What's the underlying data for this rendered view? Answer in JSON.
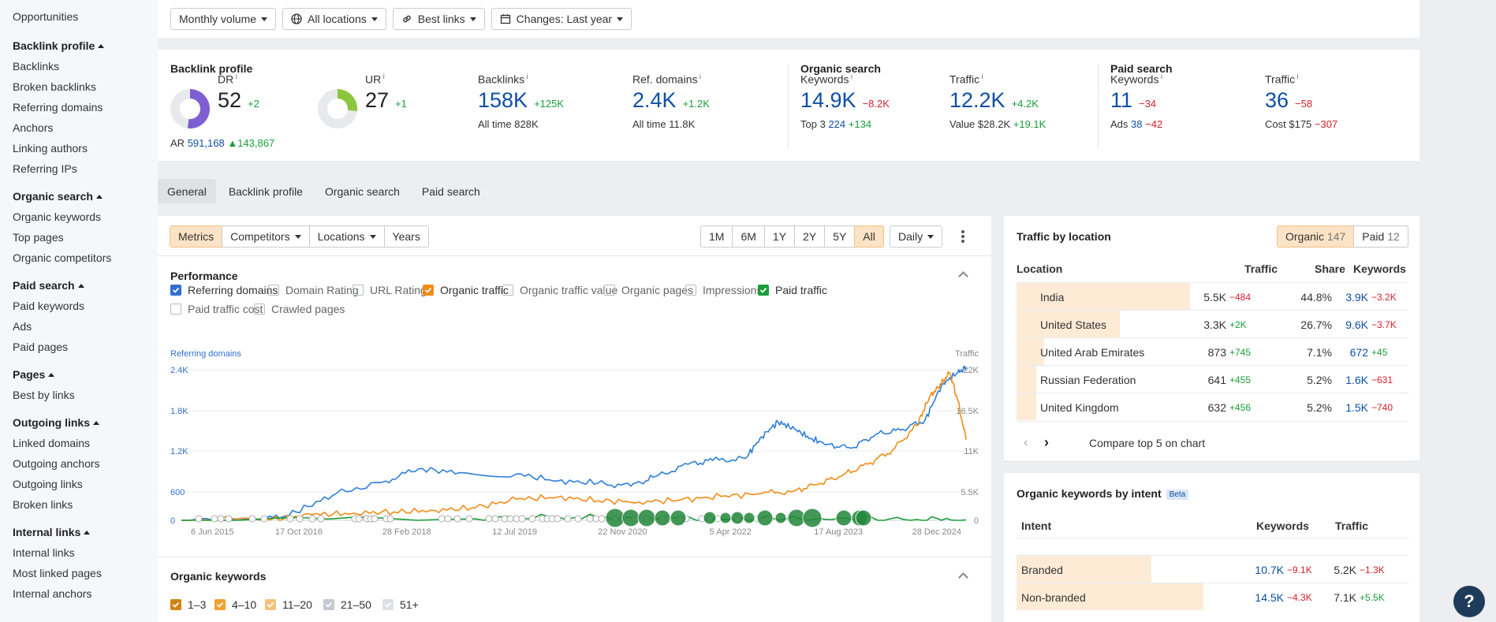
{
  "sidebar": {
    "top_item": "Opportunities",
    "groups": [
      {
        "title": "Backlink profile",
        "items": [
          "Backlinks",
          "Broken backlinks",
          "Referring domains",
          "Anchors",
          "Linking authors",
          "Referring IPs"
        ]
      },
      {
        "title": "Organic search",
        "items": [
          "Organic keywords",
          "Top pages",
          "Organic competitors"
        ]
      },
      {
        "title": "Paid search",
        "items": [
          "Paid keywords",
          "Ads",
          "Paid pages"
        ]
      },
      {
        "title": "Pages",
        "items": [
          "Best by links"
        ]
      },
      {
        "title": "Outgoing links",
        "items": [
          "Linked domains",
          "Outgoing anchors",
          "Outgoing links",
          "Broken links"
        ]
      },
      {
        "title": "Internal links",
        "items": [
          "Internal links",
          "Most linked pages",
          "Internal anchors"
        ]
      }
    ]
  },
  "filters": {
    "volume": "Monthly volume",
    "locations": "All locations",
    "links": "Best links",
    "changes": "Changes: Last year"
  },
  "metrics": {
    "backlink_profile": {
      "title": "Backlink profile",
      "dr": {
        "label": "DR",
        "value": "52",
        "delta": "+2",
        "fill": 0.52
      },
      "ar": {
        "label": "AR",
        "value": "591,168",
        "delta": "143,867"
      },
      "ur": {
        "label": "UR",
        "value": "27",
        "delta": "+1",
        "fill": 0.27
      },
      "backlinks": {
        "label": "Backlinks",
        "value": "158K",
        "delta": "+125K",
        "sub_label": "All time",
        "sub_value": "828K"
      },
      "ref_domains": {
        "label": "Ref. domains",
        "value": "2.4K",
        "delta": "+1.2K",
        "sub_label": "All time",
        "sub_value": "11.8K"
      }
    },
    "organic_search": {
      "title": "Organic search",
      "keywords": {
        "label": "Keywords",
        "value": "14.9K",
        "delta": "−8.2K",
        "sub_label": "Top 3",
        "sub_value": "224",
        "sub_delta": "+134"
      },
      "traffic": {
        "label": "Traffic",
        "value": "12.2K",
        "delta": "+4.2K",
        "sub_label": "Value",
        "sub_value": "$28.2K",
        "sub_delta": "+19.1K"
      }
    },
    "paid_search": {
      "title": "Paid search",
      "keywords": {
        "label": "Keywords",
        "value": "11",
        "delta": "−34",
        "sub_label": "Ads",
        "sub_value": "38",
        "sub_delta": "−42"
      },
      "traffic": {
        "label": "Traffic",
        "value": "36",
        "delta": "−58",
        "sub_label": "Cost",
        "sub_value": "$175",
        "sub_delta": "−307"
      }
    }
  },
  "tabs": [
    "General",
    "Backlink profile",
    "Organic search",
    "Paid search"
  ],
  "chart_toolbar": {
    "metrics": "Metrics",
    "competitors": "Competitors",
    "locations": "Locations",
    "years": "Years",
    "ranges": [
      "1M",
      "6M",
      "1Y",
      "2Y",
      "5Y",
      "All"
    ],
    "active_range": "All",
    "interval": "Daily"
  },
  "performance": {
    "title": "Performance",
    "checkboxes": [
      {
        "label": "Referring domains",
        "checked": true,
        "color": "#2f6fd1"
      },
      {
        "label": "Domain Rating",
        "checked": false
      },
      {
        "label": "URL Rating",
        "checked": false
      },
      {
        "label": "Organic traffic",
        "checked": true,
        "color": "#f08c15"
      },
      {
        "label": "Organic traffic value",
        "checked": false
      },
      {
        "label": "Organic pages",
        "checked": false
      },
      {
        "label": "Impressions",
        "checked": false
      },
      {
        "label": "Paid traffic",
        "checked": true,
        "color": "#1a9d3a"
      },
      {
        "label": "Paid traffic cost",
        "checked": false
      },
      {
        "label": "Crawled pages",
        "checked": false
      }
    ]
  },
  "chart_data": {
    "type": "line",
    "left_axis_title": "Referring domains",
    "right_axis_title": "Traffic",
    "left_ticks": [
      "2.4K",
      "1.8K",
      "1.2K",
      "600",
      "0"
    ],
    "right_ticks": [
      "22K",
      "16.5K",
      "11K",
      "5.5K",
      "0"
    ],
    "x_ticks": [
      "6 Jun 2015",
      "17 Oct 2016",
      "28 Feb 2018",
      "12 Jul 2019",
      "22 Nov 2020",
      "5 Apr 2022",
      "17 Aug 2023",
      "28 Dec 2024"
    ],
    "ylim_left": [
      0,
      2400
    ],
    "ylim_right": [
      0,
      22000
    ],
    "series": [
      {
        "name": "Referring domains",
        "axis": "left",
        "color": "#2f7fd6",
        "x": [
          2015.4,
          2016.4,
          2016.8,
          2017.3,
          2017.9,
          2018.3,
          2018.8,
          2019.5,
          2020.0,
          2020.5,
          2020.9,
          2021.2,
          2021.6,
          2021.9,
          2022.3,
          2022.5,
          2022.7,
          2022.9,
          2023.1,
          2023.3,
          2023.6,
          2023.9,
          2024.2,
          2024.5,
          2024.7,
          2024.9,
          2025.0
        ],
        "y": [
          0,
          0,
          130,
          420,
          610,
          800,
          740,
          720,
          610,
          580,
          530,
          680,
          870,
          930,
          960,
          1300,
          1530,
          1420,
          1270,
          1180,
          1120,
          1340,
          1400,
          1560,
          2100,
          2300,
          2370
        ]
      },
      {
        "name": "Organic traffic",
        "axis": "right",
        "color": "#f08c15",
        "x": [
          2015.4,
          2016.5,
          2017.0,
          2017.5,
          2018.0,
          2018.5,
          2019.0,
          2019.5,
          2020.0,
          2020.5,
          2021.0,
          2021.5,
          2022.0,
          2022.5,
          2022.9,
          2023.2,
          2023.5,
          2023.8,
          2024.1,
          2024.4,
          2024.55,
          2024.7,
          2024.8,
          2024.9,
          2025.0
        ],
        "y": [
          0,
          100,
          800,
          1000,
          1200,
          1400,
          1800,
          3000,
          3300,
          2800,
          2600,
          2900,
          3400,
          3800,
          4200,
          5200,
          6500,
          8000,
          10000,
          13500,
          17500,
          19500,
          21000,
          17000,
          11500
        ]
      },
      {
        "name": "Paid traffic",
        "axis": "right",
        "color": "#1a9d3a",
        "x": [
          2015.4,
          2019.0,
          2020.0,
          2021.0,
          2022.0,
          2022.8,
          2023.6,
          2024.4,
          2025.0
        ],
        "y": [
          0,
          200,
          500,
          300,
          150,
          200,
          150,
          100,
          50
        ]
      }
    ]
  },
  "organic_keywords": {
    "title": "Organic keywords",
    "ranges": [
      {
        "label": "1–3",
        "color": "#d18414"
      },
      {
        "label": "4–10",
        "color": "#f0a030"
      },
      {
        "label": "11–20",
        "color": "#f5c27a"
      },
      {
        "label": "21–50",
        "color": "#c5cad1"
      },
      {
        "label": "51+",
        "color": "#dde0e4"
      }
    ]
  },
  "traffic_by_location": {
    "title": "Traffic by location",
    "organic_label": "Organic",
    "organic_count": "147",
    "paid_label": "Paid",
    "paid_count": "12",
    "columns": [
      "Location",
      "Traffic",
      "Share",
      "Keywords"
    ],
    "rows": [
      {
        "location": "India",
        "traffic": "5.5K",
        "traffic_delta": "−484",
        "share": "44.8%",
        "keywords": "3.9K",
        "kw_delta": "−3.2K",
        "share_frac": 0.448
      },
      {
        "location": "United States",
        "traffic": "3.3K",
        "traffic_delta": "+2K",
        "share": "26.7%",
        "keywords": "9.6K",
        "kw_delta": "−3.7K",
        "share_frac": 0.267
      },
      {
        "location": "United Arab Emirates",
        "traffic": "873",
        "traffic_delta": "+745",
        "share": "7.1%",
        "keywords": "672",
        "kw_delta": "+45",
        "share_frac": 0.071
      },
      {
        "location": "Russian Federation",
        "traffic": "641",
        "traffic_delta": "+455",
        "share": "5.2%",
        "keywords": "1.6K",
        "kw_delta": "−631",
        "share_frac": 0.052
      },
      {
        "location": "United Kingdom",
        "traffic": "632",
        "traffic_delta": "+456",
        "share": "5.2%",
        "keywords": "1.5K",
        "kw_delta": "−740",
        "share_frac": 0.052
      }
    ],
    "compare_label": "Compare top 5 on chart"
  },
  "intent": {
    "title": "Organic keywords by intent",
    "badge": "Beta",
    "columns": [
      "Intent",
      "Keywords",
      "Traffic"
    ],
    "rows": [
      {
        "intent": "Branded",
        "keywords": "10.7K",
        "kw_delta": "−9.1K",
        "traffic": "5.2K",
        "traffic_delta": "−1.3K",
        "share_frac": 0.42
      },
      {
        "intent": "Non-branded",
        "keywords": "14.5K",
        "kw_delta": "−4.3K",
        "traffic": "7.1K",
        "traffic_delta": "+5.5K",
        "share_frac": 0.58
      }
    ]
  },
  "help_label": "?"
}
